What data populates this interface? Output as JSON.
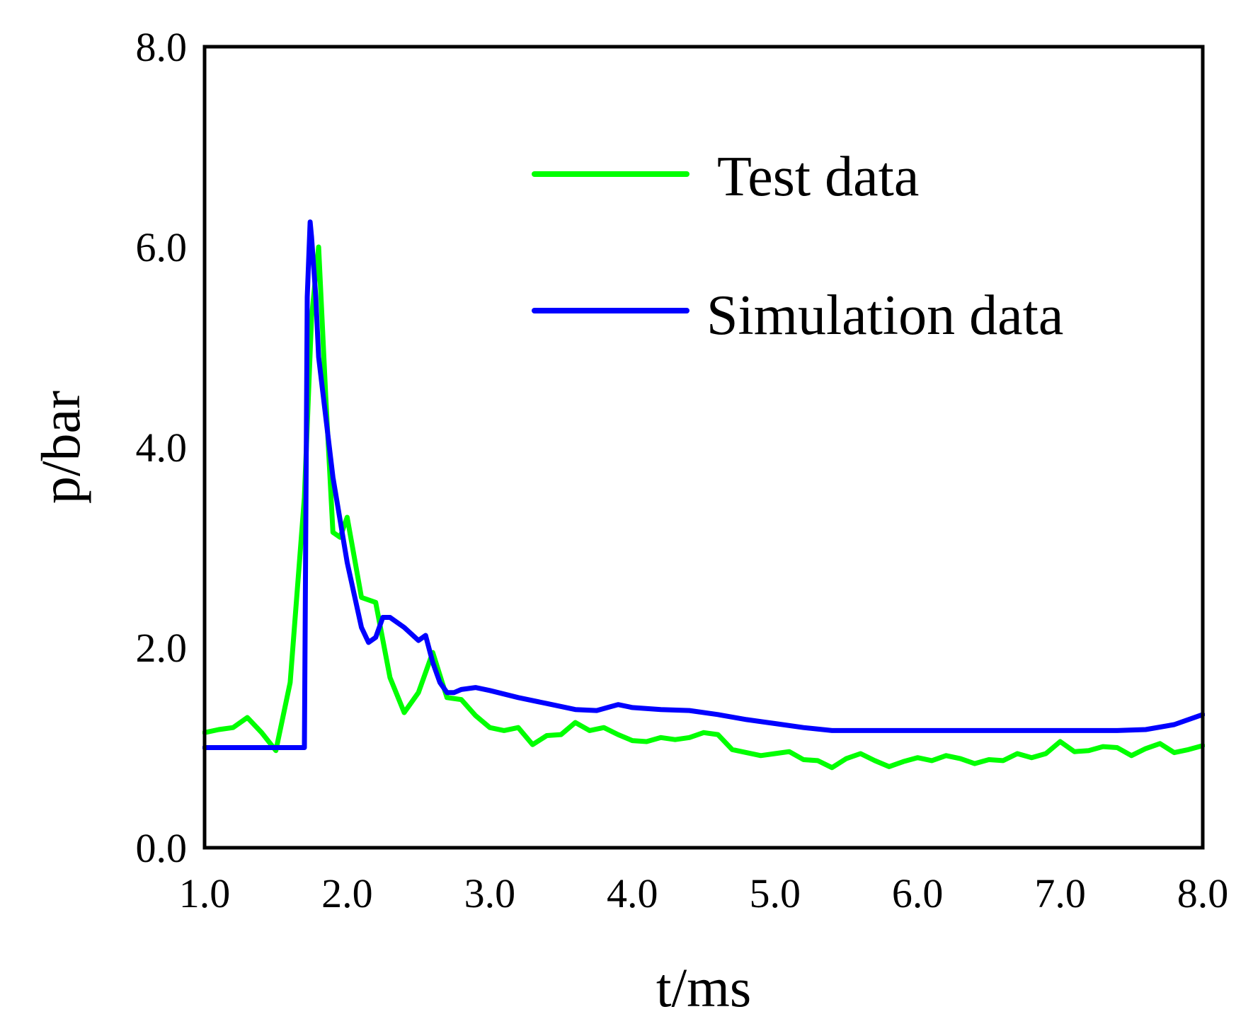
{
  "chart_data": {
    "type": "line",
    "title": "",
    "xlabel": "t/ms",
    "ylabel": "p/bar",
    "xlim": [
      1.0,
      8.0
    ],
    "ylim": [
      0.0,
      8.0
    ],
    "xticks": [
      1.0,
      2.0,
      3.0,
      4.0,
      5.0,
      6.0,
      7.0,
      8.0
    ],
    "xtick_labels": [
      "1.0",
      "2.0",
      "3.0",
      "4.0",
      "5.0",
      "6.0",
      "7.0",
      "8.0"
    ],
    "yticks": [
      0.0,
      2.0,
      4.0,
      6.0,
      8.0
    ],
    "ytick_labels": [
      "0.0",
      "2.0",
      "4.0",
      "6.0",
      "8.0"
    ],
    "grid": false,
    "legend_position": "top-right",
    "series": [
      {
        "name": "Test data",
        "color": "#00ff00",
        "x": [
          1.0,
          1.1,
          1.2,
          1.3,
          1.4,
          1.5,
          1.6,
          1.7,
          1.75,
          1.8,
          1.85,
          1.9,
          1.95,
          2.0,
          2.1,
          2.2,
          2.3,
          2.4,
          2.5,
          2.6,
          2.7,
          2.8,
          2.9,
          3.0,
          3.1,
          3.2,
          3.3,
          3.4,
          3.5,
          3.6,
          3.7,
          3.8,
          3.9,
          4.0,
          4.1,
          4.2,
          4.3,
          4.4,
          4.5,
          4.6,
          4.7,
          4.8,
          4.9,
          5.0,
          5.1,
          5.2,
          5.3,
          5.4,
          5.5,
          5.6,
          5.7,
          5.8,
          5.9,
          6.0,
          6.1,
          6.2,
          6.3,
          6.4,
          6.5,
          6.6,
          6.7,
          6.8,
          6.9,
          7.0,
          7.1,
          7.2,
          7.3,
          7.4,
          7.5,
          7.6,
          7.7,
          7.8,
          7.9,
          8.0
        ],
        "y": [
          1.15,
          1.18,
          1.2,
          1.3,
          1.15,
          0.97,
          1.65,
          3.5,
          5.3,
          6.0,
          4.5,
          3.15,
          3.1,
          3.3,
          2.5,
          2.45,
          1.7,
          1.35,
          1.55,
          1.95,
          1.5,
          1.48,
          1.32,
          1.2,
          1.17,
          1.2,
          1.03,
          1.12,
          1.13,
          1.25,
          1.17,
          1.2,
          1.13,
          1.07,
          1.06,
          1.1,
          1.08,
          1.1,
          1.15,
          1.13,
          0.98,
          0.95,
          0.92,
          0.94,
          0.96,
          0.88,
          0.87,
          0.8,
          0.89,
          0.94,
          0.87,
          0.81,
          0.86,
          0.9,
          0.87,
          0.92,
          0.89,
          0.84,
          0.88,
          0.87,
          0.94,
          0.9,
          0.94,
          1.06,
          0.96,
          0.97,
          1.01,
          1.0,
          0.92,
          0.99,
          1.04,
          0.95,
          0.98,
          1.02
        ]
      },
      {
        "name": "Simulation data",
        "color": "#0000ff",
        "x": [
          1.0,
          1.7,
          1.72,
          1.74,
          1.75,
          1.78,
          1.8,
          1.85,
          1.9,
          2.0,
          2.1,
          2.15,
          2.2,
          2.25,
          2.3,
          2.4,
          2.5,
          2.55,
          2.6,
          2.65,
          2.7,
          2.75,
          2.8,
          2.9,
          3.0,
          3.2,
          3.4,
          3.6,
          3.75,
          3.85,
          3.9,
          4.0,
          4.2,
          4.4,
          4.6,
          4.8,
          5.0,
          5.2,
          5.4,
          5.6,
          5.8,
          6.0,
          6.2,
          6.4,
          6.6,
          6.8,
          7.0,
          7.2,
          7.4,
          7.6,
          7.8,
          8.0
        ],
        "y": [
          1.0,
          1.0,
          5.5,
          6.25,
          6.1,
          5.5,
          4.9,
          4.3,
          3.7,
          2.85,
          2.2,
          2.05,
          2.1,
          2.3,
          2.3,
          2.2,
          2.07,
          2.12,
          1.85,
          1.65,
          1.55,
          1.55,
          1.58,
          1.6,
          1.57,
          1.5,
          1.44,
          1.38,
          1.37,
          1.41,
          1.43,
          1.4,
          1.38,
          1.37,
          1.33,
          1.28,
          1.24,
          1.2,
          1.17,
          1.17,
          1.17,
          1.17,
          1.17,
          1.17,
          1.17,
          1.17,
          1.17,
          1.17,
          1.17,
          1.18,
          1.23,
          1.33
        ]
      }
    ]
  }
}
